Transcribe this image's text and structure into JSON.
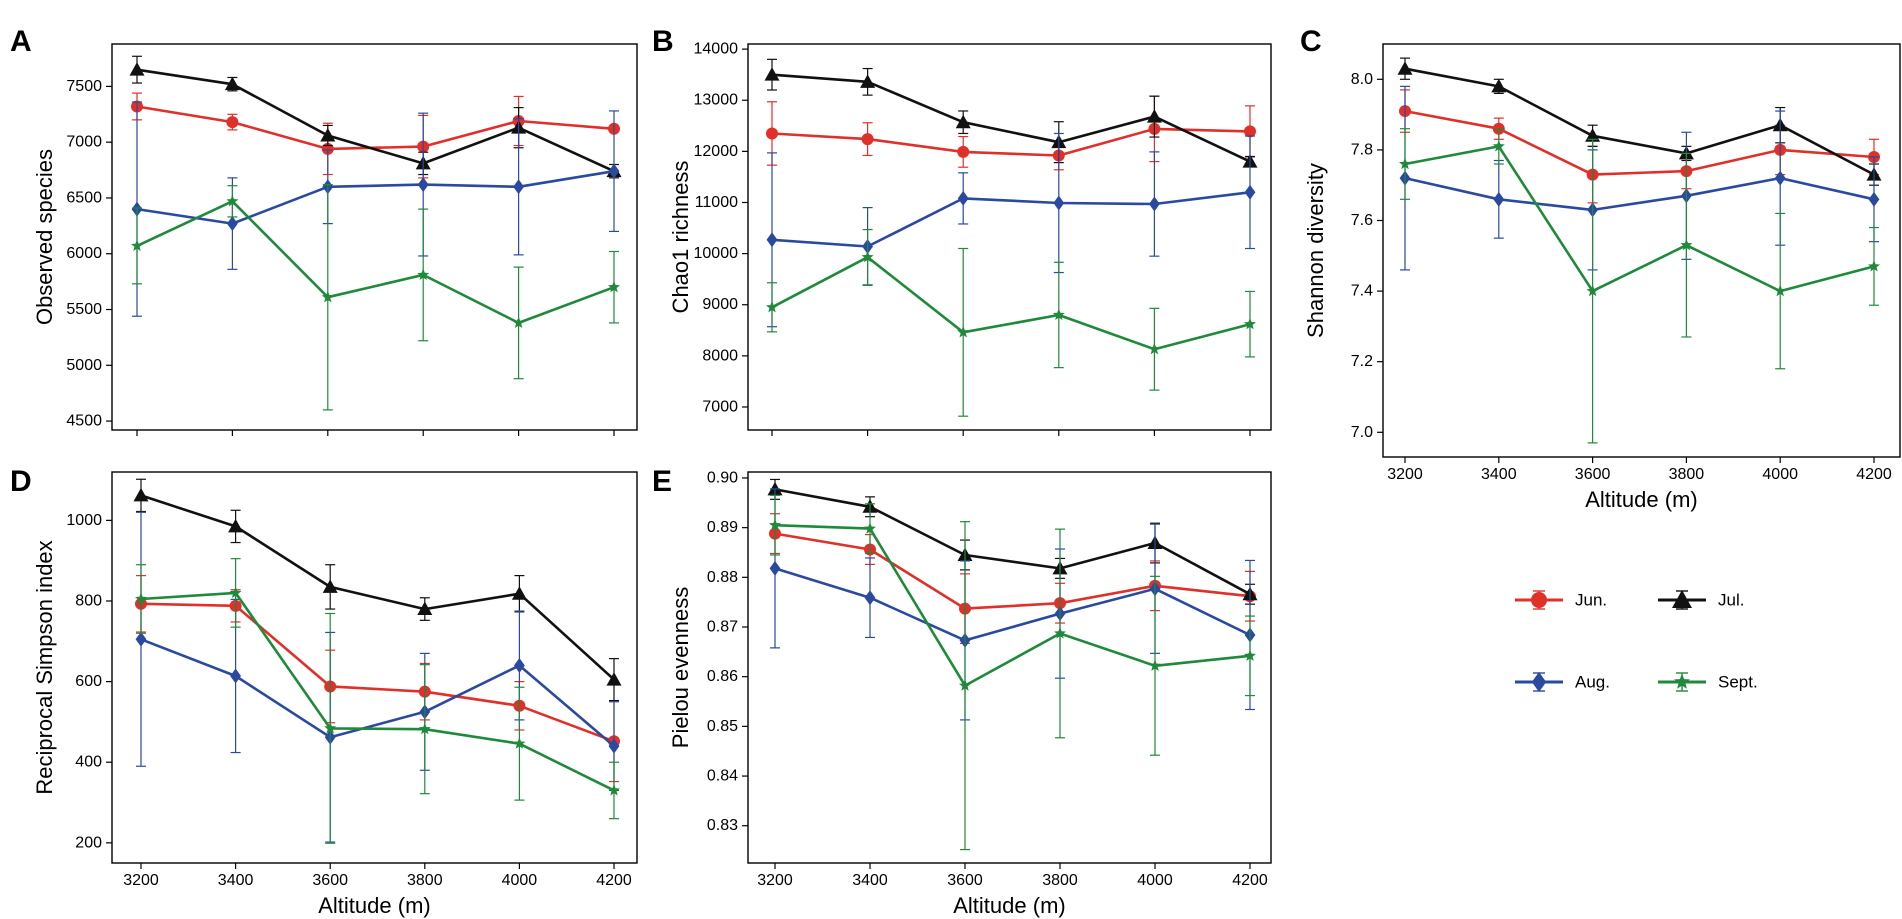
{
  "figure": {
    "colors": {
      "Jun.": "#e0302a",
      "Jul.": "#111111",
      "Aug.": "#2a4aa0",
      "Sept.": "#1f8a3a"
    },
    "legend": [
      "Jun.",
      "Jul.",
      "Aug.",
      "Sept."
    ]
  },
  "chart_data": [
    {
      "panel": "A",
      "type": "line",
      "title": "",
      "xlabel": "",
      "ylabel": "Observed species",
      "x": [
        3200,
        3400,
        3600,
        3800,
        4000,
        4200
      ],
      "x_tick_labels": [],
      "ylim": [
        4420,
        7880
      ],
      "yticks": [
        4500,
        5000,
        5500,
        6000,
        6500,
        7000,
        7500
      ],
      "series": [
        {
          "name": "Jun.",
          "marker": "circle",
          "values": [
            7320,
            7180,
            6940,
            6960,
            7190,
            7120
          ],
          "errors": [
            120,
            70,
            230,
            280,
            220,
            0
          ]
        },
        {
          "name": "Jul.",
          "marker": "triangle",
          "values": [
            7650,
            7520,
            7060,
            6810,
            7130,
            6740
          ],
          "errors": [
            120,
            60,
            90,
            100,
            180,
            60
          ]
        },
        {
          "name": "Aug.",
          "marker": "diamond",
          "values": [
            6400,
            6270,
            6600,
            6620,
            6600,
            6740
          ],
          "errors": [
            960,
            410,
            330,
            640,
            610,
            540
          ]
        },
        {
          "name": "Sept.",
          "marker": "star",
          "values": [
            6070,
            6470,
            5610,
            5810,
            5380,
            5700
          ],
          "errors": [
            340,
            140,
            1010,
            590,
            500,
            320
          ]
        }
      ]
    },
    {
      "panel": "B",
      "type": "line",
      "title": "",
      "xlabel": "",
      "ylabel": "Chao1 richness",
      "x": [
        3200,
        3400,
        3600,
        3800,
        4000,
        4200
      ],
      "x_tick_labels": [],
      "ylim": [
        6550,
        14100
      ],
      "yticks": [
        7000,
        8000,
        9000,
        10000,
        11000,
        12000,
        13000,
        14000
      ],
      "series": [
        {
          "name": "Jun.",
          "marker": "circle",
          "values": [
            12350,
            12240,
            11990,
            11920,
            12440,
            12390
          ],
          "errors": [
            620,
            320,
            300,
            280,
            640,
            500
          ]
        },
        {
          "name": "Jul.",
          "marker": "triangle",
          "values": [
            13500,
            13360,
            12570,
            12180,
            12680,
            11800
          ],
          "errors": [
            300,
            260,
            220,
            400,
            400,
            100
          ]
        },
        {
          "name": "Aug.",
          "marker": "diamond",
          "values": [
            10270,
            10140,
            11080,
            10990,
            10970,
            11200
          ],
          "errors": [
            1700,
            760,
            500,
            1360,
            1020,
            1100
          ]
        },
        {
          "name": "Sept.",
          "marker": "star",
          "values": [
            8950,
            9930,
            8460,
            8800,
            8130,
            8620
          ],
          "errors": [
            480,
            540,
            1640,
            1030,
            800,
            640
          ]
        }
      ]
    },
    {
      "panel": "C",
      "type": "line",
      "title": "",
      "xlabel": "Altitude (m)",
      "ylabel": "Shannon diversity",
      "x": [
        3200,
        3400,
        3600,
        3800,
        4000,
        4200
      ],
      "x_tick_labels": [
        "3200",
        "3400",
        "3600",
        "3800",
        "4000",
        "4200"
      ],
      "ylim": [
        6.93,
        8.1
      ],
      "yticks": [
        "7.0",
        "7.2",
        "7.4",
        "7.6",
        "7.8",
        "8.0"
      ],
      "series": [
        {
          "name": "Jun.",
          "marker": "circle",
          "values": [
            7.91,
            7.86,
            7.73,
            7.74,
            7.8,
            7.78
          ],
          "errors": [
            0.06,
            0.03,
            0.08,
            0.05,
            0.07,
            0.05
          ]
        },
        {
          "name": "Jul.",
          "marker": "triangle",
          "values": [
            8.03,
            7.98,
            7.84,
            7.79,
            7.87,
            7.73
          ],
          "errors": [
            0.03,
            0.02,
            0.03,
            0.02,
            0.05,
            0.03
          ]
        },
        {
          "name": "Aug.",
          "marker": "diamond",
          "values": [
            7.72,
            7.66,
            7.63,
            7.67,
            7.72,
            7.66
          ],
          "errors": [
            0.26,
            0.11,
            0.17,
            0.18,
            0.19,
            0.12
          ]
        },
        {
          "name": "Sept.",
          "marker": "star",
          "values": [
            7.76,
            7.81,
            7.4,
            7.53,
            7.4,
            7.47
          ],
          "errors": [
            0.1,
            0.05,
            0.43,
            0.26,
            0.22,
            0.11
          ]
        }
      ]
    },
    {
      "panel": "D",
      "type": "line",
      "title": "",
      "xlabel": "Altitude (m)",
      "ylabel": "Reciprocal Simpson index",
      "x": [
        3200,
        3400,
        3600,
        3800,
        4000,
        4200
      ],
      "x_tick_labels": [
        "3200",
        "3400",
        "3600",
        "3800",
        "4000",
        "4200"
      ],
      "ylim": [
        150,
        1120
      ],
      "yticks": [
        200,
        400,
        600,
        800,
        1000
      ],
      "series": [
        {
          "name": "Jun.",
          "marker": "circle",
          "values": [
            793,
            788,
            588,
            575,
            540,
            452
          ],
          "errors": [
            70,
            40,
            90,
            70,
            60,
            100
          ]
        },
        {
          "name": "Jul.",
          "marker": "triangle",
          "values": [
            1062,
            985,
            835,
            780,
            818,
            605
          ],
          "errors": [
            40,
            40,
            55,
            28,
            45,
            52
          ]
        },
        {
          "name": "Aug.",
          "marker": "diamond",
          "values": [
            705,
            614,
            462,
            525,
            640,
            440
          ],
          "errors": [
            315,
            190,
            260,
            145,
            135,
            110
          ]
        },
        {
          "name": "Sept.",
          "marker": "star",
          "values": [
            805,
            820,
            484,
            482,
            446,
            330
          ],
          "errors": [
            85,
            85,
            285,
            160,
            140,
            70
          ]
        }
      ]
    },
    {
      "panel": "E",
      "type": "line",
      "title": "",
      "xlabel": "Altitude (m)",
      "ylabel": "Pielou evenness",
      "x": [
        3200,
        3400,
        3600,
        3800,
        4000,
        4200
      ],
      "x_tick_labels": [
        "3200",
        "3400",
        "3600",
        "3800",
        "4000",
        "4200"
      ],
      "ylim": [
        0.8225,
        0.9012
      ],
      "yticks": [
        "0.83",
        "0.84",
        "0.85",
        "0.86",
        "0.87",
        "0.88",
        "0.89",
        "0.90"
      ],
      "series": [
        {
          "name": "Jun.",
          "marker": "circle",
          "values": [
            0.8888,
            0.8856,
            0.8737,
            0.8748,
            0.8783,
            0.8762
          ],
          "errors": [
            0.004,
            0.003,
            0.007,
            0.004,
            0.005,
            0.005
          ]
        },
        {
          "name": "Jul.",
          "marker": "triangle",
          "values": [
            0.8977,
            0.8942,
            0.8845,
            0.8818,
            0.8869,
            0.8766
          ],
          "errors": [
            0.002,
            0.002,
            0.003,
            0.002,
            0.004,
            0.002
          ]
        },
        {
          "name": "Aug.",
          "marker": "diamond",
          "values": [
            0.8818,
            0.8759,
            0.8673,
            0.8727,
            0.8777,
            0.8684
          ],
          "errors": [
            0.016,
            0.008,
            0.016,
            0.013,
            0.013,
            0.015
          ]
        },
        {
          "name": "Sept.",
          "marker": "star",
          "values": [
            0.8905,
            0.8898,
            0.8582,
            0.8687,
            0.8622,
            0.8642
          ],
          "errors": [
            0.006,
            0.005,
            0.033,
            0.021,
            0.018,
            0.008
          ]
        }
      ]
    }
  ]
}
